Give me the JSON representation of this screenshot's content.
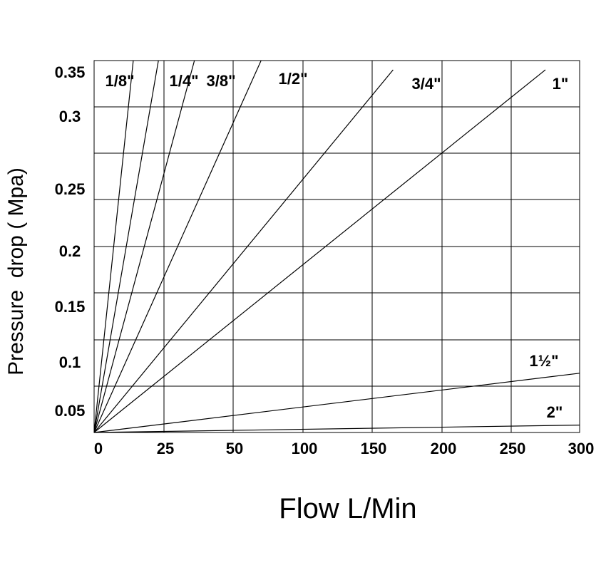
{
  "chart_data": {
    "type": "line",
    "xlabel": "Flow L/Min",
    "ylabel": "Pressure  drop ( Mpa)",
    "x_ticks": [
      "0",
      "25",
      "50",
      "100",
      "150",
      "200",
      "250",
      "300"
    ],
    "y_ticks": [
      "0.05",
      "0.1",
      "0.15",
      "0.2",
      "0.25",
      "0.3",
      "0.35"
    ],
    "grid": true,
    "series": [
      {
        "name": "1/8\"",
        "x": [
          0,
          14
        ],
        "y": [
          0.0,
          0.35
        ]
      },
      {
        "name": "1/4\"",
        "x": [
          0,
          23
        ],
        "y": [
          0.0,
          0.35
        ]
      },
      {
        "name": "3/8\"",
        "x": [
          0,
          36
        ],
        "y": [
          0.0,
          0.35
        ]
      },
      {
        "name": "1/2\"",
        "x": [
          0,
          70
        ],
        "y": [
          0.0,
          0.35
        ]
      },
      {
        "name": "3/4\"",
        "x": [
          0,
          165
        ],
        "y": [
          0.0,
          0.34
        ]
      },
      {
        "name": "1\"",
        "x": [
          0,
          275
        ],
        "y": [
          0.0,
          0.34
        ]
      },
      {
        "name": "1½\"",
        "x": [
          0,
          300
        ],
        "y": [
          0.0,
          0.064
        ]
      },
      {
        "name": "2\"",
        "x": [
          0,
          300
        ],
        "y": [
          0.0,
          0.008
        ]
      }
    ]
  }
}
